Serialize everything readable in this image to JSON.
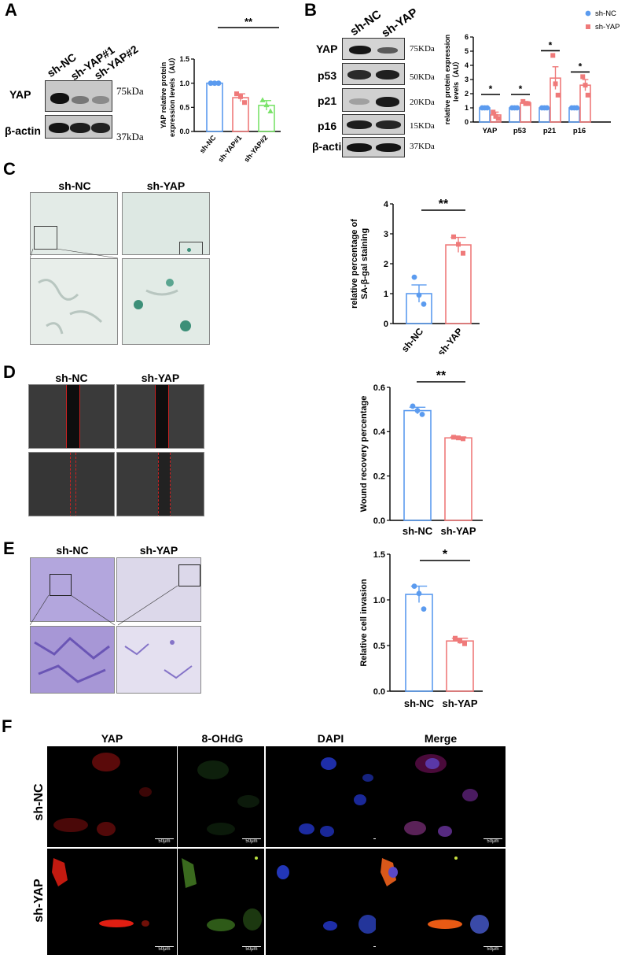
{
  "panels": {
    "A": {
      "label": "A",
      "lanes": [
        "sh-NC",
        "sh-YAP#1",
        "sh-YAP#2"
      ],
      "blots": [
        {
          "name": "YAP",
          "kda": "75kDa"
        },
        {
          "name": "β-actin",
          "kda": "37kDa"
        }
      ]
    },
    "B": {
      "label": "B",
      "lanes": [
        "sh-NC",
        "sh-YAP"
      ],
      "blots": [
        {
          "name": "YAP",
          "kda": "75KDa"
        },
        {
          "name": "p53",
          "kda": "50KDa"
        },
        {
          "name": "p21",
          "kda": "20KDa"
        },
        {
          "name": "p16",
          "kda": "15KDa"
        },
        {
          "name": "β-actin",
          "kda": "37KDa"
        }
      ]
    },
    "C": {
      "label": "C",
      "cols": [
        "sh-NC",
        "sh-YAP"
      ]
    },
    "D": {
      "label": "D",
      "cols": [
        "sh-NC",
        "sh-YAP"
      ]
    },
    "E": {
      "label": "E",
      "cols": [
        "sh-NC",
        "sh-YAP"
      ]
    },
    "F": {
      "label": "F",
      "cols": [
        "YAP",
        "8-OHdG",
        "DAPI",
        "Merge"
      ],
      "rows": [
        "sh-NC",
        "sh-YAP"
      ],
      "scale": "50μm"
    }
  },
  "colors": {
    "nc": "#5b9bef",
    "yap": "#ef7a7a",
    "yap2": "#7be36a"
  },
  "chart_data": [
    {
      "id": "A",
      "type": "bar",
      "categories": [
        "sh-NC",
        "sh-YAP#1",
        "sh-YAP#2"
      ],
      "values": [
        1.0,
        0.7,
        0.54
      ],
      "errors": [
        0.0,
        0.08,
        0.1
      ],
      "points": [
        [
          1.0,
          1.0,
          1.0
        ],
        [
          0.78,
          0.72,
          0.6
        ],
        [
          0.65,
          0.55,
          0.42
        ]
      ],
      "ylabel": "YAP relative protein expression levels（AU）",
      "ylim": [
        0,
        1.5
      ],
      "yticks": [
        "0.0",
        "0.5",
        "1.0",
        "1.5"
      ],
      "significance": "**"
    },
    {
      "id": "B",
      "type": "bar",
      "categories": [
        "YAP",
        "p53",
        "p21",
        "p16"
      ],
      "series": [
        {
          "name": "sh-NC",
          "values": [
            1.0,
            1.0,
            1.0,
            1.0
          ],
          "errors": [
            0,
            0,
            0,
            0
          ],
          "points": [
            [
              1,
              1,
              1
            ],
            [
              1,
              1,
              1
            ],
            [
              1,
              1,
              1
            ],
            [
              1,
              1,
              1
            ]
          ]
        },
        {
          "name": "sh-YAP",
          "values": [
            0.5,
            1.35,
            3.1,
            2.6
          ],
          "errors": [
            0.2,
            0.1,
            0.8,
            0.4
          ],
          "points": [
            [
              0.7,
              0.4,
              0.25
            ],
            [
              1.45,
              1.3,
              1.3
            ],
            [
              4.7,
              2.7,
              1.9
            ],
            [
              3.2,
              2.6,
              1.9
            ]
          ]
        }
      ],
      "ylabel": "relative protein expression levels（AU）",
      "ylim": [
        0,
        6
      ],
      "yticks": [
        "0",
        "1",
        "2",
        "3",
        "4",
        "5",
        "6"
      ],
      "significance": [
        "*",
        "*",
        "*",
        "*"
      ],
      "legend": "top-right"
    },
    {
      "id": "C",
      "type": "bar",
      "categories": [
        "sh-NC",
        "sh-YAP"
      ],
      "values": [
        1.0,
        2.63
      ],
      "errors": [
        0.29,
        0.25
      ],
      "points": [
        [
          1.55,
          0.95,
          0.65
        ],
        [
          2.9,
          2.65,
          2.35
        ]
      ],
      "ylabel": "relative percentage of SA-β-gal staining",
      "ylim": [
        0,
        4
      ],
      "yticks": [
        "0",
        "1",
        "2",
        "3",
        "4"
      ],
      "significance": "**"
    },
    {
      "id": "D",
      "type": "bar",
      "categories": [
        "sh-NC",
        "sh-YAP"
      ],
      "values": [
        0.495,
        0.372
      ],
      "errors": [
        0.015,
        0.004
      ],
      "points": [
        [
          0.515,
          0.495,
          0.478
        ],
        [
          0.375,
          0.372,
          0.368
        ]
      ],
      "ylabel": "Wound recovery percentage",
      "ylim": [
        0,
        0.6
      ],
      "yticks": [
        "0.0",
        "0.2",
        "0.4",
        "0.6"
      ],
      "significance": "**"
    },
    {
      "id": "E",
      "type": "bar",
      "categories": [
        "sh-NC",
        "sh-YAP"
      ],
      "values": [
        1.06,
        0.55
      ],
      "errors": [
        0.09,
        0.03
      ],
      "points": [
        [
          1.15,
          1.07,
          0.9
        ],
        [
          0.58,
          0.55,
          0.52
        ]
      ],
      "ylabel": "Relative  cell  invasion",
      "ylim": [
        0,
        1.5
      ],
      "yticks": [
        "0.0",
        "0.5",
        "1.0",
        "1.5"
      ],
      "significance": "*"
    }
  ]
}
